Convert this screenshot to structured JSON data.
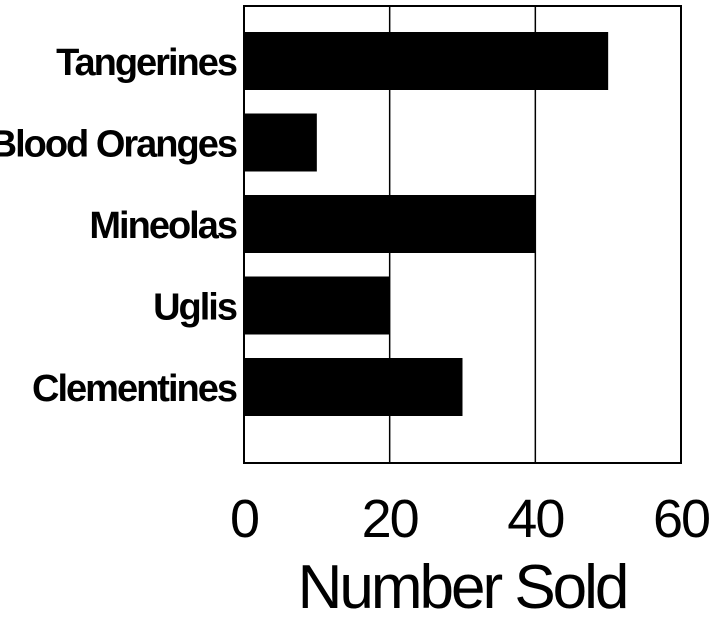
{
  "chart_data": {
    "type": "bar",
    "orientation": "horizontal",
    "categories": [
      "Tangerines",
      "Blood Oranges",
      "Mineolas",
      "Uglis",
      "Clementines"
    ],
    "values": [
      50,
      10,
      40,
      20,
      30
    ],
    "title": "",
    "xlabel": "Number Sold",
    "ylabel": "",
    "xlim": [
      0,
      60
    ],
    "xticks": [
      "0",
      "20",
      "40",
      "60"
    ],
    "grid": "vertical",
    "bar_color": "#000000"
  }
}
